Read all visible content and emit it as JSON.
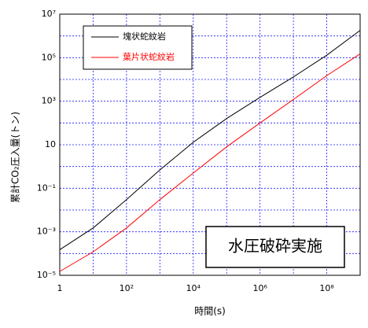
{
  "chart_data": {
    "type": "line",
    "x_label": "時間(s)",
    "y_label": "累計CO₂圧入量(トン)",
    "annotation": "水圧破砕実施",
    "log_x": true,
    "log_y": true,
    "grid": true,
    "legend": "upper left",
    "x": [
      1,
      10,
      100,
      1000,
      10000,
      100000,
      1000000,
      10000000,
      100000000,
      1000000000
    ],
    "series": [
      {
        "name": "塊状蛇紋岩",
        "color": "#000000",
        "values": [
          0.00015,
          0.0015,
          0.03,
          0.7,
          13,
          160,
          1500,
          13000,
          130000,
          1800000
        ]
      },
      {
        "name": "葉片状蛇紋岩",
        "color": "#ff0000",
        "values": [
          1.5e-05,
          0.00012,
          0.0015,
          0.03,
          0.5,
          8,
          100,
          1200,
          15000,
          150000
        ]
      }
    ],
    "xlim": [
      1,
      1000000000
    ],
    "xticks": [
      1,
      {
        "value": 100,
        "label": "10²"
      },
      {
        "value": 10000,
        "label": "10⁴"
      },
      {
        "value": 1000000,
        "label": "10⁶"
      },
      {
        "value": 100000000,
        "label": "10⁸"
      }
    ],
    "xminorticks": [
      10,
      1000,
      100000,
      10000000
    ],
    "ylim": [
      1e-05,
      10000000
    ],
    "yticks": [
      {
        "value": 1e-05,
        "label": "10⁻⁵"
      },
      {
        "value": 0.001,
        "label": "10⁻³"
      },
      {
        "value": 0.1,
        "label": "10⁻¹"
      },
      10,
      {
        "value": 1000,
        "label": "10³"
      },
      {
        "value": 100000,
        "label": "10⁵"
      },
      {
        "value": 10000000,
        "label": "10⁷"
      }
    ],
    "yminorticks": [
      0.0001,
      0.01,
      1,
      100,
      10000,
      1000000
    ]
  }
}
